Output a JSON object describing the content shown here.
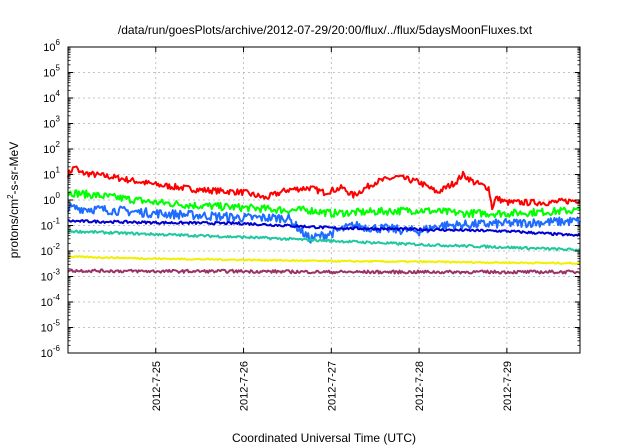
{
  "chart_data": {
    "type": "line",
    "title": "/data/run/goesPlots/archive/2012-07-29/20:00/flux/../flux/5daysMoonFluxes.txt",
    "xlabel": "Coordinated Universal Time (UTC)",
    "ylabel": {
      "prefix": "protons/cm",
      "exponent": "2",
      "suffix": "-s-sr-MeV"
    },
    "y_scale": "log",
    "ylim": [
      1e-06,
      1000000.0
    ],
    "y_ticks": [
      {
        "base": "10",
        "exp": "-6",
        "value": 1e-06
      },
      {
        "base": "10",
        "exp": "-5",
        "value": 1e-05
      },
      {
        "base": "10",
        "exp": "-4",
        "value": 0.0001
      },
      {
        "base": "10",
        "exp": "-3",
        "value": 0.001
      },
      {
        "base": "10",
        "exp": "-2",
        "value": 0.01
      },
      {
        "base": "10",
        "exp": "-1",
        "value": 0.1
      },
      {
        "base": "10",
        "exp": "0",
        "value": 1
      },
      {
        "base": "10",
        "exp": "1",
        "value": 10
      },
      {
        "base": "10",
        "exp": "2",
        "value": 100
      },
      {
        "base": "10",
        "exp": "3",
        "value": 1000
      },
      {
        "base": "10",
        "exp": "4",
        "value": 10000
      },
      {
        "base": "10",
        "exp": "5",
        "value": 100000
      },
      {
        "base": "10",
        "exp": "6",
        "value": 1000000
      }
    ],
    "xlim": [
      "2012-07-24T00:00",
      "2012-07-29T20:00"
    ],
    "x_ticks": [
      {
        "label": "2012-7-25",
        "date": "2012-07-25T00:00"
      },
      {
        "label": "2012-7-26",
        "date": "2012-07-26T00:00"
      },
      {
        "label": "2012-7-27",
        "date": "2012-07-27T00:00"
      },
      {
        "label": "2012-7-28",
        "date": "2012-07-28T00:00"
      },
      {
        "label": "2012-7-29",
        "date": "2012-07-29T00:00"
      }
    ],
    "grid": true,
    "legend": "none",
    "series": [
      {
        "color": "#ff0000",
        "noise": 0.12,
        "points": [
          [
            "2012-07-24T00:00",
            10
          ],
          [
            "2012-07-24T02:00",
            22
          ],
          [
            "2012-07-24T03:00",
            12
          ],
          [
            "2012-07-24T12:00",
            8
          ],
          [
            "2012-07-25T00:00",
            4
          ],
          [
            "2012-07-25T12:00",
            2.5
          ],
          [
            "2012-07-26T00:00",
            2
          ],
          [
            "2012-07-26T06:00",
            1.2
          ],
          [
            "2012-07-26T12:00",
            2.5
          ],
          [
            "2012-07-26T18:00",
            3
          ],
          [
            "2012-07-26T22:00",
            2
          ],
          [
            "2012-07-27T03:00",
            3
          ],
          [
            "2012-07-27T06:00",
            1.5
          ],
          [
            "2012-07-27T12:00",
            5
          ],
          [
            "2012-07-27T18:00",
            8
          ],
          [
            "2012-07-28T00:00",
            5
          ],
          [
            "2012-07-28T05:00",
            2
          ],
          [
            "2012-07-28T10:00",
            5
          ],
          [
            "2012-07-28T12:00",
            10
          ],
          [
            "2012-07-28T15:00",
            5
          ],
          [
            "2012-07-28T19:00",
            3
          ],
          [
            "2012-07-28T20:00",
            0.5
          ],
          [
            "2012-07-28T21:00",
            1.2
          ],
          [
            "2012-07-29T00:00",
            0.8
          ],
          [
            "2012-07-29T12:00",
            0.8
          ],
          [
            "2012-07-29T20:00",
            1.0
          ]
        ]
      },
      {
        "color": "#00ff00",
        "noise": 0.15,
        "points": [
          [
            "2012-07-24T00:00",
            2.0
          ],
          [
            "2012-07-24T12:00",
            1.3
          ],
          [
            "2012-07-25T00:00",
            0.8
          ],
          [
            "2012-07-25T12:00",
            0.6
          ],
          [
            "2012-07-26T00:00",
            0.5
          ],
          [
            "2012-07-26T12:00",
            0.4
          ],
          [
            "2012-07-26T18:00",
            0.4
          ],
          [
            "2012-07-27T00:00",
            0.3
          ],
          [
            "2012-07-27T12:00",
            0.35
          ],
          [
            "2012-07-28T00:00",
            0.4
          ],
          [
            "2012-07-28T12:00",
            0.3
          ],
          [
            "2012-07-29T00:00",
            0.3
          ],
          [
            "2012-07-29T12:00",
            0.35
          ],
          [
            "2012-07-29T20:00",
            0.4
          ]
        ]
      },
      {
        "color": "#1e6cff",
        "noise": 0.18,
        "points": [
          [
            "2012-07-24T00:00",
            0.5
          ],
          [
            "2012-07-24T12:00",
            0.4
          ],
          [
            "2012-07-25T00:00",
            0.3
          ],
          [
            "2012-07-25T12:00",
            0.25
          ],
          [
            "2012-07-26T00:00",
            0.2
          ],
          [
            "2012-07-26T12:00",
            0.2
          ],
          [
            "2012-07-26T18:00",
            0.03
          ],
          [
            "2012-07-27T00:00",
            0.05
          ],
          [
            "2012-07-27T06:00",
            0.1
          ],
          [
            "2012-07-27T12:00",
            0.08
          ],
          [
            "2012-07-28T00:00",
            0.06
          ],
          [
            "2012-07-28T06:00",
            0.1
          ],
          [
            "2012-07-29T00:00",
            0.12
          ],
          [
            "2012-07-29T20:00",
            0.15
          ]
        ]
      },
      {
        "color": "#0000d0",
        "noise": 0.05,
        "points": [
          [
            "2012-07-24T00:00",
            0.15
          ],
          [
            "2012-07-25T00:00",
            0.13
          ],
          [
            "2012-07-26T00:00",
            0.12
          ],
          [
            "2012-07-26T18:00",
            0.09
          ],
          [
            "2012-07-27T00:00",
            0.08
          ],
          [
            "2012-07-28T00:00",
            0.07
          ],
          [
            "2012-07-29T00:00",
            0.06
          ],
          [
            "2012-07-29T20:00",
            0.04
          ]
        ]
      },
      {
        "color": "#20c8a0",
        "noise": 0.05,
        "points": [
          [
            "2012-07-24T00:00",
            0.06
          ],
          [
            "2012-07-25T00:00",
            0.045
          ],
          [
            "2012-07-26T00:00",
            0.035
          ],
          [
            "2012-07-27T00:00",
            0.025
          ],
          [
            "2012-07-28T00:00",
            0.018
          ],
          [
            "2012-07-29T00:00",
            0.014
          ],
          [
            "2012-07-29T20:00",
            0.011
          ]
        ]
      },
      {
        "color": "#f0f000",
        "noise": 0.03,
        "points": [
          [
            "2012-07-24T00:00",
            0.006
          ],
          [
            "2012-07-25T00:00",
            0.005
          ],
          [
            "2012-07-26T00:00",
            0.0045
          ],
          [
            "2012-07-27T00:00",
            0.004
          ],
          [
            "2012-07-28T00:00",
            0.0038
          ],
          [
            "2012-07-29T00:00",
            0.0035
          ],
          [
            "2012-07-29T20:00",
            0.0033
          ]
        ]
      },
      {
        "color": "#993366",
        "noise": 0.06,
        "points": [
          [
            "2012-07-24T00:00",
            0.0017
          ],
          [
            "2012-07-25T00:00",
            0.0016
          ],
          [
            "2012-07-26T00:00",
            0.0016
          ],
          [
            "2012-07-27T00:00",
            0.0015
          ],
          [
            "2012-07-28T00:00",
            0.0015
          ],
          [
            "2012-07-29T00:00",
            0.0015
          ],
          [
            "2012-07-29T20:00",
            0.0015
          ]
        ]
      }
    ]
  }
}
